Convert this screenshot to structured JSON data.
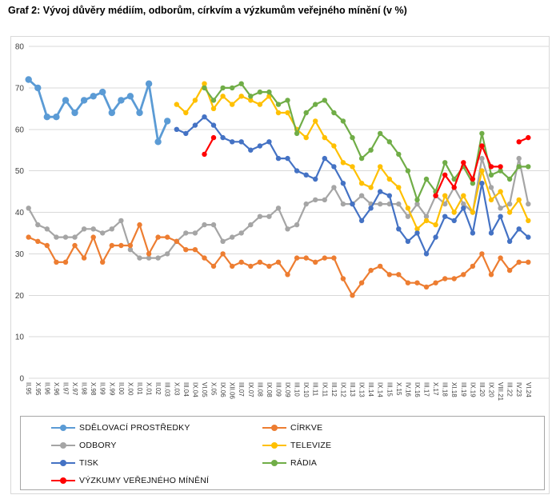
{
  "title": "Graf 2: Vývoj důvěry médiím, odborům, církvím a výzkumům veřejného mínění (v %)",
  "chart_data": {
    "type": "line",
    "title": "Graf 2: Vývoj důvěry médiím, odborům, církvím a výzkumům veřejného mínění (v %)",
    "xlabel": "",
    "ylabel": "",
    "ylim": [
      0,
      80
    ],
    "y_step": 10,
    "grid": true,
    "legend_position": "bottom-box",
    "axis_text_color": "#404040",
    "grid_color": "#d9d9d9",
    "categories": [
      "II.95",
      "X.95",
      "II.96",
      "X.96",
      "II.97",
      "X.97",
      "II.98",
      "X.98",
      "II.99",
      "X.99",
      "II.00",
      "X.00",
      "II.01",
      "X.01",
      "II.02",
      "III.03",
      "X.03",
      "III.04",
      "IX.04",
      "VI.05",
      "X.05",
      "IX.06",
      "XII.06",
      "III.07",
      "IX.07",
      "III.08",
      "IX.08",
      "III.09",
      "IX.09",
      "III.10",
      "IX.10",
      "III.11",
      "IX.11",
      "III.12",
      "IX.12",
      "III.13",
      "IX.13",
      "III.14",
      "IX.14",
      "III.15",
      "X.15",
      "IV.16",
      "IX.16",
      "III.17",
      "X.17",
      "III.18",
      "XI.18",
      "III.19",
      "IX.19",
      "III.20",
      "IX.20",
      "VIII.21",
      "III.22",
      "IV.23",
      "VI.24"
    ],
    "series": [
      {
        "key": "odbory",
        "name": "ODBORY",
        "color": "#A5A5A5",
        "values": [
          41,
          37,
          36,
          34,
          34,
          34,
          36,
          36,
          35,
          36,
          38,
          31,
          29,
          29,
          29,
          30,
          33,
          35,
          35,
          37,
          37,
          33,
          34,
          35,
          37,
          39,
          39,
          41,
          36,
          37,
          42,
          43,
          43,
          46,
          42,
          42,
          44,
          42,
          42,
          42,
          42,
          39,
          42,
          39,
          44,
          42,
          46,
          42,
          40,
          53,
          46,
          41,
          42,
          53,
          42
        ]
      },
      {
        "key": "sdelovaci-prostredky",
        "name": "SDĚLOVACÍ PROSTŘEDKY",
        "color": "#5B9BD5",
        "values": [
          72,
          70,
          63,
          63,
          67,
          64,
          67,
          68,
          69,
          64,
          67,
          68,
          64,
          71,
          57,
          62,
          null,
          null,
          null,
          null,
          null,
          null,
          null,
          null,
          null,
          null,
          null,
          null,
          null,
          null,
          null,
          null,
          null,
          null,
          null,
          null,
          null,
          null,
          null,
          null,
          null,
          null,
          null,
          null,
          null,
          null,
          null,
          null,
          null,
          null,
          null,
          null,
          null,
          null,
          null
        ]
      },
      {
        "key": "cirkve",
        "name": "CÍRKVE",
        "color": "#ED7D31",
        "values": [
          34,
          33,
          32,
          28,
          28,
          32,
          29,
          34,
          28,
          32,
          32,
          32,
          37,
          30,
          34,
          34,
          33,
          31,
          31,
          29,
          27,
          30,
          27,
          28,
          27,
          28,
          27,
          28,
          25,
          29,
          29,
          28,
          29,
          29,
          24,
          20,
          23,
          26,
          27,
          25,
          25,
          23,
          23,
          22,
          23,
          24,
          24,
          25,
          27,
          30,
          25,
          29,
          26,
          28,
          28
        ]
      },
      {
        "key": "televize",
        "name": "TELEVIZE",
        "color": "#FFC000",
        "values": [
          null,
          null,
          null,
          null,
          null,
          null,
          null,
          null,
          null,
          null,
          null,
          null,
          null,
          null,
          null,
          null,
          66,
          64,
          67,
          71,
          65,
          68,
          66,
          68,
          67,
          66,
          68,
          64,
          64,
          60,
          58,
          62,
          58,
          56,
          52,
          51,
          47,
          46,
          51,
          48,
          46,
          41,
          36,
          38,
          37,
          44,
          40,
          44,
          40,
          50,
          43,
          45,
          40,
          43,
          38
        ]
      },
      {
        "key": "radia",
        "name": "RÁDIA",
        "color": "#70AD47",
        "values": [
          null,
          null,
          null,
          null,
          null,
          null,
          null,
          null,
          null,
          null,
          null,
          null,
          null,
          null,
          null,
          null,
          null,
          null,
          null,
          70,
          67,
          70,
          70,
          71,
          68,
          69,
          69,
          66,
          67,
          59,
          64,
          66,
          67,
          64,
          62,
          58,
          53,
          55,
          59,
          57,
          54,
          50,
          43,
          48,
          45,
          52,
          48,
          51,
          47,
          59,
          49,
          50,
          48,
          51,
          51
        ]
      },
      {
        "key": "tisk",
        "name": "TISK",
        "color": "#4472C4",
        "values": [
          null,
          null,
          null,
          null,
          null,
          null,
          null,
          null,
          null,
          null,
          null,
          null,
          null,
          null,
          null,
          null,
          60,
          59,
          61,
          63,
          61,
          58,
          57,
          57,
          55,
          56,
          57,
          53,
          53,
          50,
          49,
          48,
          53,
          51,
          47,
          42,
          38,
          41,
          45,
          44,
          36,
          33,
          35,
          30,
          34,
          39,
          38,
          41,
          35,
          47,
          35,
          39,
          33,
          36,
          34
        ]
      },
      {
        "key": "vyzkumy-verejneho-mineni",
        "name": "VÝZKUMY VEŘEJNÉHO MÍNĚNÍ",
        "color": "#FF0000",
        "values": [
          null,
          null,
          null,
          null,
          null,
          null,
          null,
          null,
          null,
          null,
          null,
          null,
          null,
          null,
          null,
          null,
          null,
          null,
          null,
          54,
          58,
          null,
          null,
          null,
          null,
          null,
          null,
          null,
          null,
          null,
          null,
          null,
          null,
          null,
          null,
          null,
          null,
          null,
          null,
          null,
          null,
          null,
          null,
          null,
          44,
          49,
          46,
          52,
          48,
          56,
          51,
          51,
          null,
          57,
          58
        ]
      }
    ],
    "legend_columns": [
      [
        "sdelovaci-prostredky",
        "odbory",
        "tisk",
        "vyzkumy-verejneho-mineni"
      ],
      [
        "cirkve",
        "televize",
        "radia"
      ]
    ]
  }
}
